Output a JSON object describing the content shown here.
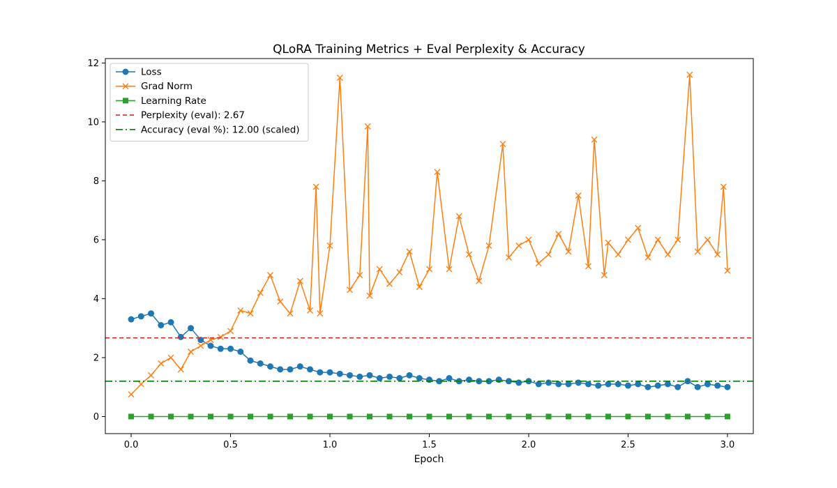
{
  "chart_data": {
    "type": "line",
    "title": "QLoRA Training Metrics + Eval Perplexity & Accuracy",
    "xlabel": "Epoch",
    "ylabel": "",
    "xlim": [
      -0.13,
      3.13
    ],
    "ylim": [
      -0.58,
      12.15
    ],
    "xticks": [
      0.0,
      0.5,
      1.0,
      1.5,
      2.0,
      2.5,
      3.0
    ],
    "xtick_labels": [
      "0.0",
      "0.5",
      "1.0",
      "1.5",
      "2.0",
      "2.5",
      "3.0"
    ],
    "yticks": [
      0,
      2,
      4,
      6,
      8,
      10,
      12
    ],
    "ytick_labels": [
      "0",
      "2",
      "4",
      "6",
      "8",
      "10",
      "12"
    ],
    "grid": false,
    "legend_position": "upper-left",
    "series": [
      {
        "name": "Loss",
        "color": "#1f77b4",
        "marker": "circle",
        "x": [
          0.0,
          0.05,
          0.1,
          0.15,
          0.2,
          0.25,
          0.3,
          0.35,
          0.4,
          0.45,
          0.5,
          0.55,
          0.6,
          0.65,
          0.7,
          0.75,
          0.8,
          0.85,
          0.9,
          0.95,
          1.0,
          1.05,
          1.1,
          1.15,
          1.2,
          1.25,
          1.3,
          1.35,
          1.4,
          1.45,
          1.5,
          1.55,
          1.6,
          1.65,
          1.7,
          1.75,
          1.8,
          1.85,
          1.9,
          1.95,
          2.0,
          2.05,
          2.1,
          2.15,
          2.2,
          2.25,
          2.3,
          2.35,
          2.4,
          2.45,
          2.5,
          2.55,
          2.6,
          2.65,
          2.7,
          2.75,
          2.8,
          2.85,
          2.9,
          2.95,
          3.0
        ],
        "values": [
          3.3,
          3.4,
          3.5,
          3.1,
          3.2,
          2.7,
          3.0,
          2.6,
          2.4,
          2.3,
          2.3,
          2.2,
          1.9,
          1.8,
          1.7,
          1.6,
          1.6,
          1.7,
          1.6,
          1.5,
          1.5,
          1.45,
          1.4,
          1.35,
          1.4,
          1.3,
          1.35,
          1.3,
          1.4,
          1.3,
          1.25,
          1.2,
          1.3,
          1.2,
          1.25,
          1.2,
          1.2,
          1.25,
          1.2,
          1.15,
          1.2,
          1.1,
          1.15,
          1.1,
          1.1,
          1.15,
          1.1,
          1.05,
          1.1,
          1.1,
          1.05,
          1.1,
          1.0,
          1.05,
          1.1,
          1.0,
          1.2,
          1.0,
          1.1,
          1.05,
          1.0
        ]
      },
      {
        "name": "Grad Norm",
        "color": "#ff7f0e",
        "marker": "x",
        "x": [
          0.0,
          0.05,
          0.1,
          0.15,
          0.2,
          0.25,
          0.3,
          0.35,
          0.4,
          0.45,
          0.5,
          0.55,
          0.6,
          0.65,
          0.7,
          0.75,
          0.8,
          0.85,
          0.9,
          0.93,
          0.95,
          1.0,
          1.05,
          1.1,
          1.15,
          1.19,
          1.2,
          1.25,
          1.3,
          1.35,
          1.4,
          1.45,
          1.5,
          1.54,
          1.6,
          1.65,
          1.7,
          1.75,
          1.8,
          1.87,
          1.9,
          1.95,
          2.0,
          2.05,
          2.1,
          2.15,
          2.2,
          2.25,
          2.3,
          2.33,
          2.38,
          2.4,
          2.45,
          2.5,
          2.55,
          2.6,
          2.65,
          2.7,
          2.75,
          2.81,
          2.85,
          2.9,
          2.95,
          2.98,
          3.0
        ],
        "values": [
          0.75,
          1.1,
          1.4,
          1.8,
          2.0,
          1.6,
          2.2,
          2.4,
          2.6,
          2.7,
          2.9,
          3.6,
          3.5,
          4.2,
          4.8,
          3.9,
          3.5,
          4.6,
          3.6,
          7.8,
          3.5,
          5.8,
          11.5,
          4.3,
          4.8,
          9.85,
          4.1,
          5.0,
          4.5,
          4.9,
          5.6,
          4.4,
          5.0,
          8.3,
          5.0,
          6.8,
          5.5,
          4.6,
          5.8,
          9.25,
          5.4,
          5.8,
          6.0,
          5.2,
          5.5,
          6.2,
          5.6,
          7.5,
          5.1,
          9.4,
          4.8,
          5.9,
          5.5,
          6.0,
          6.4,
          5.4,
          6.0,
          5.5,
          6.0,
          11.6,
          5.6,
          6.0,
          5.5,
          7.8,
          4.95
        ]
      },
      {
        "name": "Learning Rate",
        "color": "#2ca02c",
        "marker": "square",
        "x": [
          0.0,
          0.1,
          0.2,
          0.3,
          0.4,
          0.5,
          0.6,
          0.7,
          0.8,
          0.9,
          1.0,
          1.1,
          1.2,
          1.3,
          1.4,
          1.5,
          1.6,
          1.7,
          1.8,
          1.9,
          2.0,
          2.1,
          2.2,
          2.3,
          2.4,
          2.5,
          2.6,
          2.7,
          2.8,
          2.9,
          3.0
        ],
        "values": [
          0.0,
          0.0,
          0.0,
          0.0,
          0.0,
          0.0,
          0.0,
          0.0,
          0.0,
          0.0,
          0.0,
          0.0,
          0.0,
          0.0,
          0.0,
          0.0,
          0.0,
          0.0,
          0.0,
          0.0,
          0.0,
          0.0,
          0.0,
          0.0,
          0.0,
          0.0,
          0.0,
          0.0,
          0.0,
          0.0,
          0.0
        ]
      }
    ],
    "reference_lines": [
      {
        "name": "Perplexity (eval): 2.67",
        "color": "#d62728",
        "style": "dashed",
        "y": 2.67
      },
      {
        "name": "Accuracy (eval %): 12.00 (scaled)",
        "color": "#008000",
        "style": "dashdot",
        "y": 1.2
      }
    ]
  }
}
